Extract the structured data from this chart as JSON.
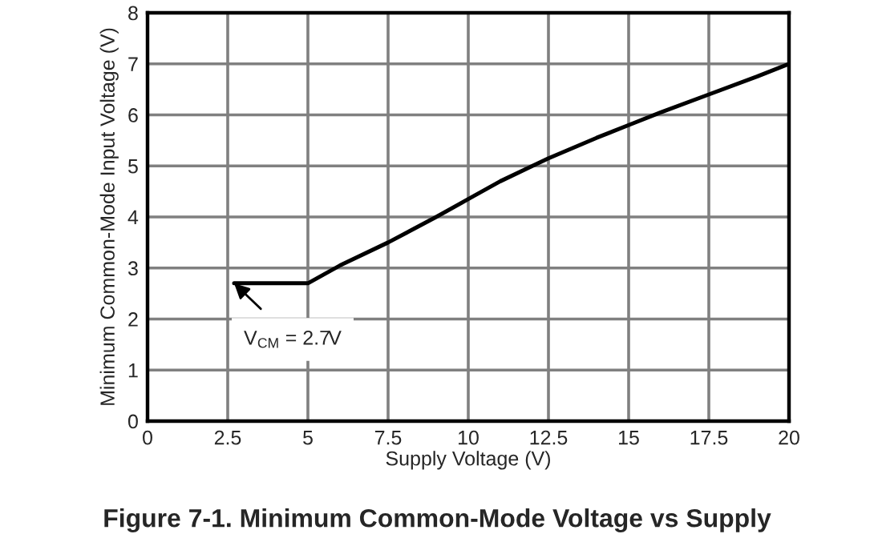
{
  "chart_data": {
    "type": "line",
    "title": "Figure 7-1. Minimum Common-Mode Voltage vs Supply",
    "xlabel": "Supply Voltage (V)",
    "ylabel": "Minimum Common-Mode Input Voltage (V)",
    "x": [
      2.7,
      5,
      6,
      7.5,
      9,
      10,
      11,
      12,
      12.5,
      14,
      15,
      16,
      17.5,
      19,
      20
    ],
    "series": [
      {
        "color": "#000000",
        "values": [
          2.7,
          2.7,
          3.05,
          3.5,
          4.0,
          4.35,
          4.7,
          5.0,
          5.15,
          5.55,
          5.8,
          6.05,
          6.4,
          6.75,
          7.0
        ]
      }
    ],
    "xlim": [
      0,
      20
    ],
    "ylim": [
      0,
      8
    ],
    "xticks": [
      0,
      2.5,
      5,
      7.5,
      10,
      12.5,
      15,
      17.5,
      20
    ],
    "yticks": [
      0,
      1,
      2,
      3,
      4,
      5,
      6,
      7,
      8
    ],
    "grid": true,
    "marker": "none",
    "line_style": "solid",
    "annotations": [
      {
        "text": "V$_{CM}$ = 2.7V",
        "x": 2.7,
        "y": 2.7
      }
    ]
  }
}
